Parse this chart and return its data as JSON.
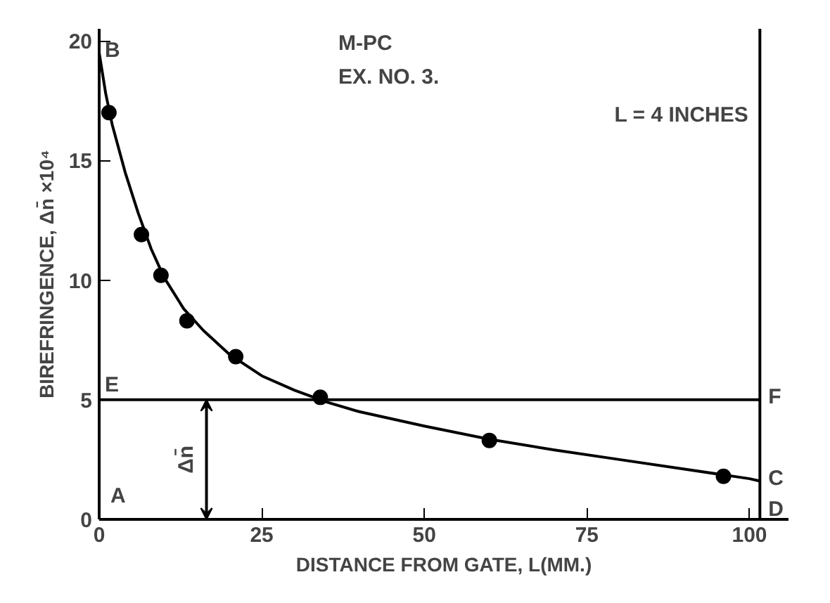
{
  "chart_data": {
    "type": "scatter",
    "xlabel": "DISTANCE FROM GATE, L(MM.)",
    "ylabel": "BIREFRINGENCE, Δn̄ ×10⁴",
    "xlim": [
      0,
      106
    ],
    "ylim": [
      0,
      20.5
    ],
    "xticks": [
      0,
      25,
      50,
      75,
      100
    ],
    "yticks": [
      0,
      5,
      10,
      15,
      20
    ],
    "grid": false,
    "series": [
      {
        "marker": "circle",
        "color": "#000000",
        "x": [
          1.5,
          6.5,
          9.5,
          13.5,
          21,
          34,
          60,
          96
        ],
        "values": [
          17,
          11.9,
          10.2,
          8.3,
          6.8,
          5.1,
          3.3,
          1.8
        ]
      },
      {
        "type": "line",
        "marker": "none",
        "line_style": "solid",
        "color": "#000000",
        "x": [
          0,
          1,
          2,
          4,
          6,
          8,
          10,
          13,
          16,
          20,
          25,
          30,
          35,
          40,
          50,
          60,
          70,
          80,
          90,
          100,
          101.6
        ],
        "values": [
          19.5,
          17.8,
          16.5,
          14.5,
          12.8,
          11.3,
          10.1,
          8.8,
          7.9,
          6.9,
          6.0,
          5.4,
          4.9,
          4.5,
          3.9,
          3.35,
          2.9,
          2.5,
          2.1,
          1.7,
          1.6
        ]
      }
    ],
    "ref_lines": [
      {
        "axis": "y",
        "value": 5,
        "color": "#000000",
        "line_style": "solid"
      },
      {
        "axis": "x",
        "value": 101.6,
        "color": "#000000",
        "line_style": "solid"
      }
    ],
    "annotations": [
      "M-PC",
      "EX. NO. 3.",
      "A",
      "L = 4 INCHES",
      {
        "text": "B",
        "x": 0,
        "y": 19.5
      },
      {
        "text": "C",
        "x": 101.6,
        "y": 1.6
      },
      {
        "text": "D",
        "x": 101.6,
        "y": 0
      },
      {
        "text": "E",
        "x": 0,
        "y": 5
      },
      {
        "text": "F",
        "x": 101.6,
        "y": 5
      },
      {
        "text": "Δn̄",
        "x": 16.5,
        "y": 5
      }
    ]
  }
}
